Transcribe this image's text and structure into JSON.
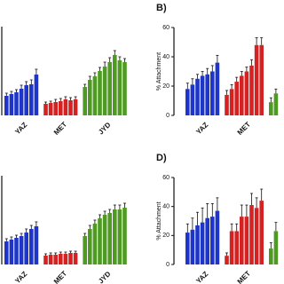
{
  "chart_data": [
    {
      "type": "bar",
      "ylim": [
        0,
        100
      ],
      "groups": [
        {
          "name": "YAZ",
          "color": "#1f35c8",
          "values": [
            22,
            24,
            26,
            30,
            34,
            35,
            46
          ],
          "errors": [
            3,
            3,
            3,
            4,
            4,
            5,
            6
          ]
        },
        {
          "name": "MET",
          "color": "#d42222",
          "values": [
            13,
            14,
            15,
            16,
            18,
            17,
            18
          ],
          "errors": [
            2,
            2,
            3,
            3,
            3,
            3,
            3
          ]
        },
        {
          "name": "JYD",
          "color": "#4e9a22",
          "values": [
            32,
            40,
            44,
            50,
            55,
            60,
            68,
            62,
            60
          ],
          "errors": [
            3,
            4,
            4,
            4,
            5,
            5,
            5,
            4,
            4
          ]
        }
      ]
    },
    {
      "type": "bar",
      "panel_label": "B)",
      "y_label": "% Attachment",
      "ylim": [
        0,
        60
      ],
      "yticks": [
        0,
        20,
        40,
        60
      ],
      "groups": [
        {
          "name": "YAZ",
          "color": "#1f35c8",
          "values": [
            18,
            21,
            25,
            27,
            28,
            30,
            36
          ],
          "errors": [
            4,
            4,
            3,
            3,
            4,
            4,
            5
          ]
        },
        {
          "name": "MET",
          "color": "#d42222",
          "values": [
            14,
            18,
            23,
            27,
            30,
            34,
            48,
            48
          ],
          "errors": [
            3,
            3,
            3,
            3,
            3,
            4,
            5,
            5
          ]
        },
        {
          "name": null,
          "color": "#4e9a22",
          "values": [
            9,
            15
          ],
          "errors": [
            3,
            3
          ]
        }
      ]
    },
    {
      "type": "bar",
      "ylim": [
        0,
        100
      ],
      "groups": [
        {
          "name": "YAZ",
          "color": "#1f35c8",
          "values": [
            26,
            28,
            30,
            32,
            36,
            40,
            43
          ],
          "errors": [
            3,
            3,
            3,
            3,
            4,
            4,
            5
          ]
        },
        {
          "name": "MET",
          "color": "#d42222",
          "values": [
            10,
            11,
            11,
            12,
            12,
            13,
            13
          ],
          "errors": [
            2,
            2,
            2,
            2,
            2,
            2,
            2
          ]
        },
        {
          "name": "JYD",
          "color": "#4e9a22",
          "values": [
            32,
            40,
            46,
            52,
            56,
            58,
            62,
            62,
            64
          ],
          "errors": [
            3,
            4,
            4,
            4,
            4,
            4,
            5,
            5,
            5
          ]
        }
      ]
    },
    {
      "type": "bar",
      "panel_label": "D)",
      "y_label": "% Attachment",
      "ylim": [
        0,
        60
      ],
      "yticks": [
        0,
        20,
        40,
        60
      ],
      "groups": [
        {
          "name": "YAZ",
          "color": "#1f35c8",
          "values": [
            22,
            24,
            27,
            29,
            32,
            33,
            37
          ],
          "errors": [
            6,
            8,
            9,
            10,
            10,
            9,
            9
          ]
        },
        {
          "name": "MET",
          "color": "#d42222",
          "values": [
            6,
            23,
            23,
            33,
            33,
            41,
            39,
            44
          ],
          "errors": [
            2,
            5,
            5,
            8,
            8,
            8,
            7,
            8
          ]
        },
        {
          "name": null,
          "color": "#4e9a22",
          "values": [
            11,
            23
          ],
          "errors": [
            4,
            6
          ]
        }
      ]
    }
  ]
}
